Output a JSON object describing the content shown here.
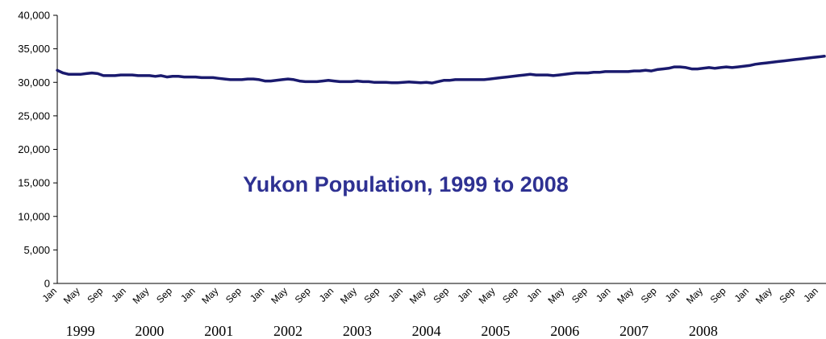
{
  "chart_data": {
    "type": "line",
    "title": "Yukon Population, 1999 to 2008",
    "xlabel": "",
    "ylabel": "",
    "ylim": [
      0,
      40000
    ],
    "yticks": [
      "0",
      "5,000",
      "10,000",
      "15,000",
      "20,000",
      "25,000",
      "30,000",
      "35,000",
      "40,000"
    ],
    "month_ticks": [
      "Jan",
      "May",
      "Sep"
    ],
    "years": [
      "1999",
      "2000",
      "2001",
      "2002",
      "2003",
      "2004",
      "2005",
      "2006",
      "2007",
      "2008"
    ],
    "grid": false,
    "legend": "none",
    "line_color": "#1a1a6e",
    "title_color": "#2e3192",
    "series": [
      {
        "values": [
          31800,
          31400,
          31200,
          31200,
          31200,
          31300,
          31400,
          31300,
          31000,
          31000,
          31000,
          31100,
          31100,
          31100,
          31000,
          31000,
          31000,
          30900,
          31000,
          30800,
          30900,
          30900,
          30800,
          30800,
          30800,
          30700,
          30700,
          30700,
          30600,
          30500,
          30400,
          30400,
          30400,
          30500,
          30500,
          30400,
          30200,
          30200,
          30300,
          30400,
          30500,
          30400,
          30200,
          30100,
          30100,
          30100,
          30200,
          30300,
          30200,
          30100,
          30100,
          30100,
          30200,
          30100,
          30100,
          30000,
          30000,
          30000,
          29950,
          29950,
          30000,
          30050,
          30000,
          29950,
          30000,
          29900,
          30100,
          30300,
          30300,
          30400,
          30400,
          30400,
          30400,
          30400,
          30400,
          30500,
          30600,
          30700,
          30800,
          30900,
          31000,
          31100,
          31200,
          31100,
          31100,
          31100,
          31000,
          31100,
          31200,
          31300,
          31400,
          31400,
          31400,
          31500,
          31500,
          31600,
          31600,
          31600,
          31600,
          31600,
          31700,
          31700,
          31800,
          31700,
          31900,
          32000,
          32100,
          32300,
          32300,
          32200,
          32000,
          32000,
          32100,
          32200,
          32100,
          32200,
          32300,
          32200,
          32300,
          32400,
          32500,
          32700,
          32800,
          32900,
          33000,
          33100,
          33200,
          33300,
          33400,
          33500,
          33600,
          33700,
          33800,
          33900
        ]
      }
    ]
  }
}
